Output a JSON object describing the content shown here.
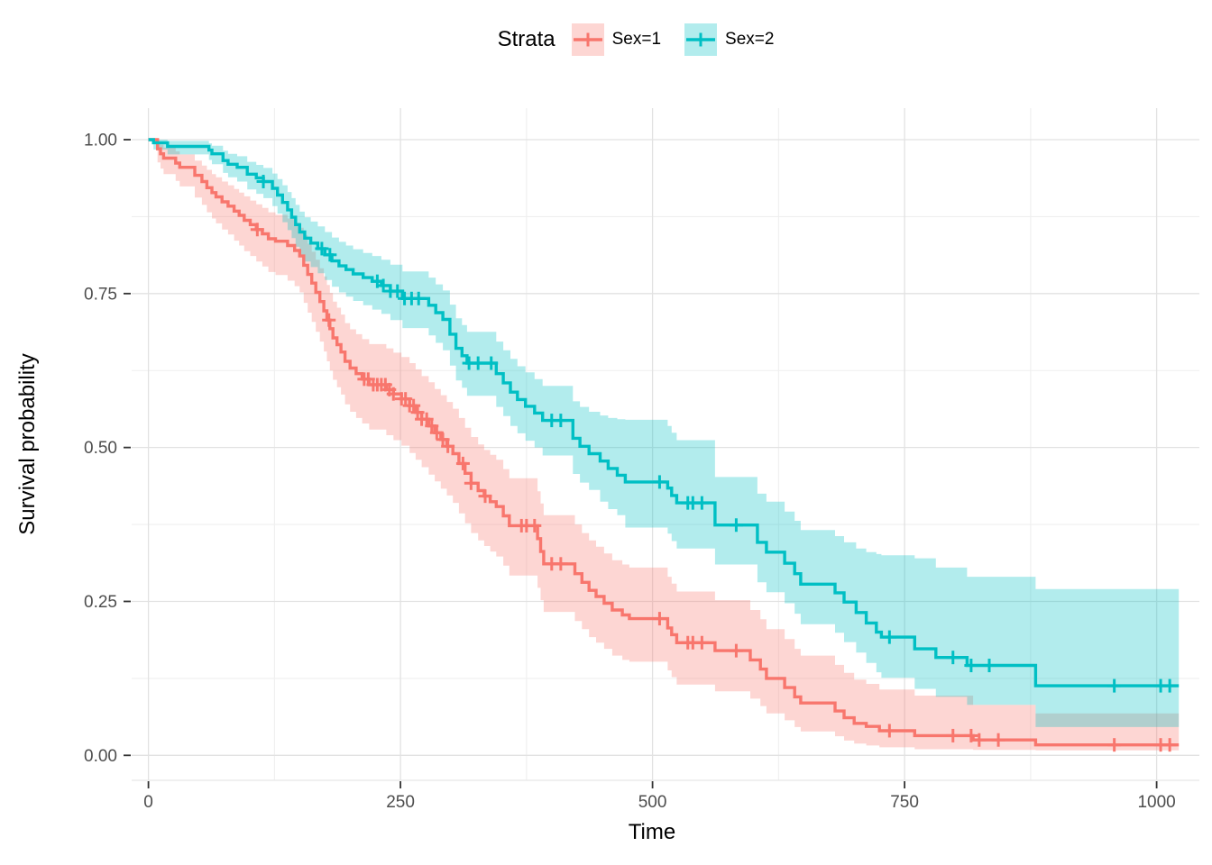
{
  "legend": {
    "title": "Strata",
    "items": [
      {
        "label": "Sex=1",
        "color": "#F8766D"
      },
      {
        "label": "Sex=2",
        "color": "#00BFC4"
      }
    ]
  },
  "axes": {
    "x": {
      "title": "Time",
      "tick_labels": [
        "0",
        "250",
        "500",
        "750",
        "1000"
      ],
      "tick_values": [
        0,
        250,
        500,
        750,
        1000
      ],
      "minor_values": [
        125,
        375,
        625,
        875
      ]
    },
    "y": {
      "title": "Survival probability",
      "tick_labels": [
        "0.00",
        "0.25",
        "0.50",
        "0.75",
        "1.00"
      ],
      "tick_values": [
        0,
        0.25,
        0.5,
        0.75,
        1
      ],
      "minor_values": [
        0.125,
        0.375,
        0.625,
        0.875
      ]
    }
  },
  "colors": {
    "grid_major": "#E2E2E2",
    "grid_minor": "#EFEFEF",
    "tick_mark": "#333333",
    "tick_text": "#4D4D4D",
    "axis_line": "#E8E8E8",
    "band_opacity": 0.3
  },
  "chart_data": {
    "type": "line",
    "subtype": "kaplan-meier-step",
    "title": "",
    "xlabel": "Time",
    "ylabel": "Survival probability",
    "xlim": [
      0,
      1022
    ],
    "ylim": [
      0,
      1
    ],
    "grid": true,
    "legend_position": "top",
    "series": [
      {
        "name": "Sex=1",
        "color": "#F8766D",
        "end_time": 1022,
        "steps": [
          [
            0,
            1,
            1,
            1
          ],
          [
            9,
            0.985,
            0.963,
            0.997
          ],
          [
            12,
            0.977,
            0.953,
            0.992
          ],
          [
            15,
            0.97,
            0.944,
            0.987
          ],
          [
            27,
            0.962,
            0.933,
            0.981
          ],
          [
            31,
            0.955,
            0.924,
            0.976
          ],
          [
            46,
            0.942,
            0.906,
            0.966
          ],
          [
            53,
            0.932,
            0.894,
            0.958
          ],
          [
            58,
            0.922,
            0.882,
            0.951
          ],
          [
            63,
            0.914,
            0.872,
            0.944
          ],
          [
            67,
            0.907,
            0.864,
            0.939
          ],
          [
            73,
            0.899,
            0.854,
            0.932
          ],
          [
            79,
            0.892,
            0.846,
            0.926
          ],
          [
            85,
            0.884,
            0.836,
            0.92
          ],
          [
            90,
            0.877,
            0.828,
            0.914
          ],
          [
            95,
            0.869,
            0.819,
            0.908
          ],
          [
            101,
            0.862,
            0.811,
            0.901
          ],
          [
            107,
            0.854,
            0.802,
            0.895
          ],
          [
            113,
            0.847,
            0.794,
            0.889
          ],
          [
            119,
            0.839,
            0.785,
            0.882
          ],
          [
            126,
            0.835,
            0.78,
            0.878
          ],
          [
            138,
            0.828,
            0.771,
            0.872
          ],
          [
            145,
            0.82,
            0.762,
            0.865
          ],
          [
            150,
            0.811,
            0.752,
            0.857
          ],
          [
            154,
            0.796,
            0.735,
            0.845
          ],
          [
            158,
            0.781,
            0.719,
            0.831
          ],
          [
            162,
            0.767,
            0.704,
            0.818
          ],
          [
            166,
            0.752,
            0.688,
            0.805
          ],
          [
            170,
            0.737,
            0.672,
            0.791
          ],
          [
            174,
            0.722,
            0.656,
            0.778
          ],
          [
            177,
            0.707,
            0.64,
            0.764
          ],
          [
            180,
            0.693,
            0.625,
            0.751
          ],
          [
            183,
            0.678,
            0.61,
            0.737
          ],
          [
            187,
            0.667,
            0.598,
            0.727
          ],
          [
            191,
            0.655,
            0.586,
            0.716
          ],
          [
            195,
            0.64,
            0.57,
            0.702
          ],
          [
            200,
            0.629,
            0.558,
            0.692
          ],
          [
            206,
            0.62,
            0.548,
            0.684
          ],
          [
            212,
            0.611,
            0.539,
            0.676
          ],
          [
            219,
            0.602,
            0.529,
            0.668
          ],
          [
            236,
            0.594,
            0.52,
            0.661
          ],
          [
            243,
            0.587,
            0.512,
            0.654
          ],
          [
            251,
            0.579,
            0.503,
            0.647
          ],
          [
            259,
            0.568,
            0.491,
            0.637
          ],
          [
            265,
            0.557,
            0.48,
            0.627
          ],
          [
            271,
            0.546,
            0.468,
            0.616
          ],
          [
            278,
            0.535,
            0.456,
            0.606
          ],
          [
            284,
            0.524,
            0.445,
            0.595
          ],
          [
            290,
            0.513,
            0.433,
            0.585
          ],
          [
            296,
            0.502,
            0.422,
            0.574
          ],
          [
            302,
            0.49,
            0.41,
            0.563
          ],
          [
            308,
            0.474,
            0.393,
            0.548
          ],
          [
            314,
            0.458,
            0.377,
            0.532
          ],
          [
            320,
            0.442,
            0.361,
            0.517
          ],
          [
            327,
            0.43,
            0.349,
            0.505
          ],
          [
            333,
            0.421,
            0.34,
            0.496
          ],
          [
            339,
            0.412,
            0.331,
            0.488
          ],
          [
            345,
            0.404,
            0.323,
            0.48
          ],
          [
            352,
            0.389,
            0.308,
            0.465
          ],
          [
            358,
            0.373,
            0.292,
            0.45
          ],
          [
            386,
            0.352,
            0.272,
            0.429
          ],
          [
            389,
            0.331,
            0.252,
            0.409
          ],
          [
            392,
            0.311,
            0.233,
            0.39
          ],
          [
            423,
            0.295,
            0.218,
            0.375
          ],
          [
            430,
            0.281,
            0.205,
            0.361
          ],
          [
            437,
            0.268,
            0.192,
            0.349
          ],
          [
            444,
            0.258,
            0.183,
            0.339
          ],
          [
            452,
            0.247,
            0.173,
            0.328
          ],
          [
            460,
            0.236,
            0.162,
            0.317
          ],
          [
            470,
            0.228,
            0.155,
            0.31
          ],
          [
            477,
            0.222,
            0.152,
            0.305
          ],
          [
            515,
            0.207,
            0.138,
            0.29
          ],
          [
            519,
            0.196,
            0.127,
            0.279
          ],
          [
            524,
            0.183,
            0.115,
            0.266
          ],
          [
            562,
            0.17,
            0.104,
            0.252
          ],
          [
            597,
            0.155,
            0.092,
            0.236
          ],
          [
            607,
            0.14,
            0.08,
            0.221
          ],
          [
            613,
            0.125,
            0.068,
            0.205
          ],
          [
            631,
            0.11,
            0.057,
            0.189
          ],
          [
            641,
            0.095,
            0.046,
            0.173
          ],
          [
            647,
            0.085,
            0.039,
            0.162
          ],
          [
            681,
            0.072,
            0.031,
            0.147
          ],
          [
            690,
            0.061,
            0.024,
            0.134
          ],
          [
            700,
            0.052,
            0.019,
            0.123
          ],
          [
            712,
            0.047,
            0.016,
            0.116
          ],
          [
            725,
            0.04,
            0.013,
            0.107
          ],
          [
            760,
            0.032,
            0.01,
            0.097
          ],
          [
            818,
            0.025,
            0.009,
            0.082
          ],
          [
            880,
            0.017,
            0.008,
            0.068
          ]
        ],
        "censor_times": [
          108,
          179,
          214,
          218,
          223,
          227,
          231,
          235,
          239,
          243,
          251,
          255,
          259,
          263,
          267,
          271,
          276,
          281,
          286,
          292,
          297,
          312,
          320,
          334,
          370,
          375,
          383,
          400,
          409,
          507,
          535,
          540,
          549,
          583,
          735,
          798,
          816,
          824,
          843,
          958,
          1004,
          1013
        ]
      },
      {
        "name": "Sex=2",
        "color": "#00BFC4",
        "end_time": 1022,
        "steps": [
          [
            0,
            1,
            1,
            1
          ],
          [
            5,
            0.995,
            0.984,
            1
          ],
          [
            19,
            0.989,
            0.976,
            0.998
          ],
          [
            60,
            0.983,
            0.967,
            0.994
          ],
          [
            63,
            0.977,
            0.96,
            0.99
          ],
          [
            74,
            0.966,
            0.946,
            0.982
          ],
          [
            79,
            0.96,
            0.939,
            0.977
          ],
          [
            88,
            0.955,
            0.932,
            0.973
          ],
          [
            98,
            0.944,
            0.919,
            0.964
          ],
          [
            107,
            0.938,
            0.912,
            0.959
          ],
          [
            114,
            0.932,
            0.905,
            0.954
          ],
          [
            123,
            0.921,
            0.892,
            0.945
          ],
          [
            128,
            0.91,
            0.88,
            0.936
          ],
          [
            133,
            0.898,
            0.866,
            0.926
          ],
          [
            138,
            0.886,
            0.853,
            0.915
          ],
          [
            142,
            0.874,
            0.84,
            0.905
          ],
          [
            146,
            0.862,
            0.826,
            0.894
          ],
          [
            150,
            0.85,
            0.813,
            0.883
          ],
          [
            155,
            0.84,
            0.802,
            0.874
          ],
          [
            161,
            0.832,
            0.793,
            0.867
          ],
          [
            168,
            0.823,
            0.783,
            0.859
          ],
          [
            175,
            0.813,
            0.772,
            0.85
          ],
          [
            182,
            0.803,
            0.761,
            0.841
          ],
          [
            189,
            0.795,
            0.752,
            0.834
          ],
          [
            196,
            0.789,
            0.745,
            0.828
          ],
          [
            203,
            0.782,
            0.738,
            0.822
          ],
          [
            213,
            0.776,
            0.731,
            0.816
          ],
          [
            222,
            0.77,
            0.724,
            0.811
          ],
          [
            231,
            0.763,
            0.717,
            0.805
          ],
          [
            240,
            0.754,
            0.707,
            0.797
          ],
          [
            252,
            0.742,
            0.694,
            0.786
          ],
          [
            278,
            0.731,
            0.682,
            0.776
          ],
          [
            285,
            0.719,
            0.67,
            0.765
          ],
          [
            292,
            0.708,
            0.658,
            0.755
          ],
          [
            299,
            0.684,
            0.633,
            0.732
          ],
          [
            305,
            0.661,
            0.609,
            0.71
          ],
          [
            311,
            0.649,
            0.597,
            0.699
          ],
          [
            316,
            0.637,
            0.584,
            0.688
          ],
          [
            345,
            0.62,
            0.566,
            0.672
          ],
          [
            352,
            0.605,
            0.551,
            0.658
          ],
          [
            359,
            0.59,
            0.535,
            0.644
          ],
          [
            366,
            0.578,
            0.523,
            0.632
          ],
          [
            374,
            0.567,
            0.511,
            0.622
          ],
          [
            383,
            0.556,
            0.5,
            0.611
          ],
          [
            391,
            0.544,
            0.487,
            0.6
          ],
          [
            421,
            0.515,
            0.457,
            0.575
          ],
          [
            428,
            0.502,
            0.443,
            0.566
          ],
          [
            437,
            0.49,
            0.431,
            0.558
          ],
          [
            448,
            0.478,
            0.412,
            0.552
          ],
          [
            456,
            0.466,
            0.4,
            0.548
          ],
          [
            465,
            0.455,
            0.39,
            0.546
          ],
          [
            473,
            0.444,
            0.37,
            0.545
          ],
          [
            515,
            0.434,
            0.36,
            0.535
          ],
          [
            519,
            0.422,
            0.348,
            0.524
          ],
          [
            524,
            0.41,
            0.336,
            0.512
          ],
          [
            562,
            0.374,
            0.31,
            0.452
          ],
          [
            604,
            0.346,
            0.281,
            0.425
          ],
          [
            613,
            0.33,
            0.265,
            0.412
          ],
          [
            631,
            0.312,
            0.247,
            0.396
          ],
          [
            641,
            0.295,
            0.23,
            0.381
          ],
          [
            647,
            0.278,
            0.213,
            0.366
          ],
          [
            681,
            0.264,
            0.199,
            0.356
          ],
          [
            690,
            0.249,
            0.184,
            0.346
          ],
          [
            702,
            0.232,
            0.167,
            0.336
          ],
          [
            712,
            0.215,
            0.15,
            0.33
          ],
          [
            722,
            0.2,
            0.135,
            0.327
          ],
          [
            727,
            0.192,
            0.126,
            0.325
          ],
          [
            760,
            0.173,
            0.108,
            0.32
          ],
          [
            781,
            0.159,
            0.095,
            0.305
          ],
          [
            812,
            0.146,
            0.082,
            0.29
          ],
          [
            880,
            0.113,
            0.046,
            0.27
          ]
        ],
        "censor_times": [
          114,
          172,
          180,
          227,
          233,
          240,
          247,
          254,
          261,
          268,
          318,
          327,
          340,
          400,
          409,
          507,
          535,
          540,
          549,
          583,
          735,
          798,
          816,
          834,
          958,
          1004,
          1013
        ]
      }
    ]
  }
}
